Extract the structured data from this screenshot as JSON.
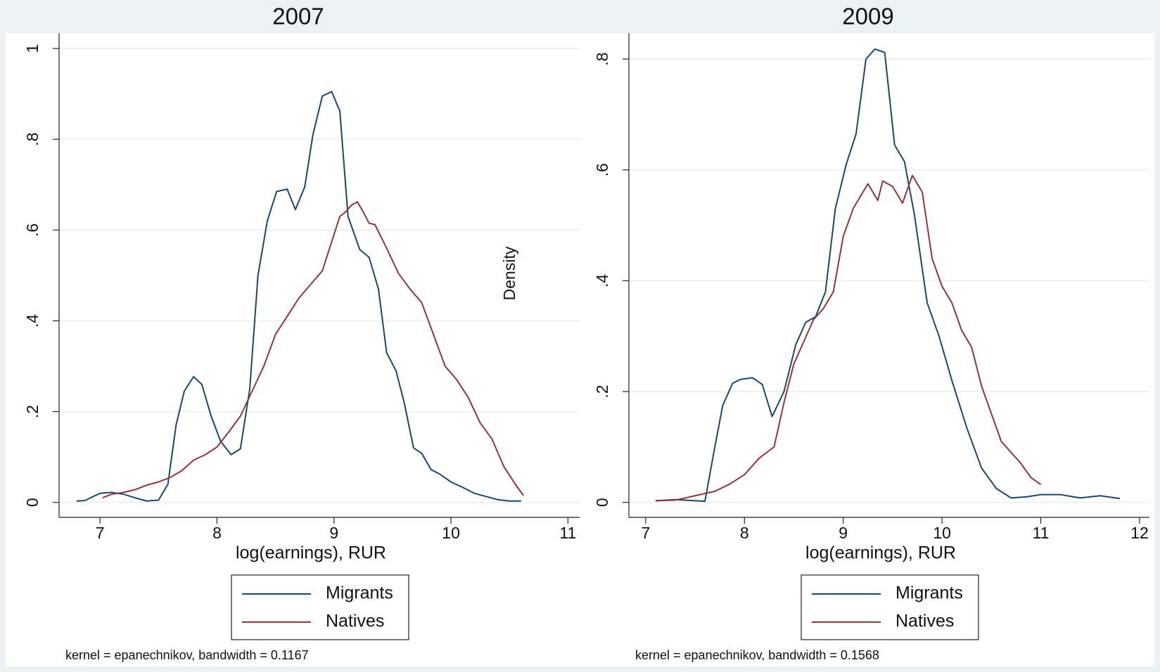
{
  "chart_data": [
    {
      "type": "line",
      "title": "2007",
      "xlabel": "log(earnings), RUR",
      "ylabel": "Density",
      "note": "kernel = epanechnikov, bandwidth = 0.1167",
      "xlim": [
        6.65,
        11.1
      ],
      "ylim": [
        -0.033,
        1.034
      ],
      "xticks": [
        7,
        8,
        9,
        10,
        11
      ],
      "yticks": [
        0,
        {
          "value": 0.2,
          "label": ".2"
        },
        {
          "value": 0.4,
          "label": ".4"
        },
        {
          "value": 0.6,
          "label": ".6"
        },
        {
          "value": 0.8,
          "label": ".8"
        },
        1
      ],
      "grid": true,
      "series": [
        {
          "name": "Migrants",
          "color": "#1a476f",
          "x": [
            6.8,
            6.87,
            7.0,
            7.1,
            7.2,
            7.3,
            7.4,
            7.5,
            7.58,
            7.65,
            7.72,
            7.8,
            7.87,
            7.95,
            8.03,
            8.12,
            8.2,
            8.28,
            8.35,
            8.43,
            8.51,
            8.6,
            8.67,
            8.75,
            8.82,
            8.9,
            8.98,
            9.05,
            9.12,
            9.22,
            9.3,
            9.38,
            9.45,
            9.53,
            9.6,
            9.68,
            9.75,
            9.83,
            9.9,
            10.0,
            10.1,
            10.2,
            10.3,
            10.4,
            10.5,
            10.6
          ],
          "values": [
            0.003,
            0.004,
            0.02,
            0.022,
            0.018,
            0.01,
            0.003,
            0.005,
            0.04,
            0.17,
            0.245,
            0.277,
            0.26,
            0.19,
            0.135,
            0.105,
            0.118,
            0.25,
            0.5,
            0.62,
            0.685,
            0.69,
            0.645,
            0.695,
            0.81,
            0.895,
            0.905,
            0.862,
            0.63,
            0.557,
            0.54,
            0.47,
            0.33,
            0.29,
            0.22,
            0.12,
            0.108,
            0.072,
            0.063,
            0.045,
            0.033,
            0.02,
            0.013,
            0.006,
            0.003,
            0.003
          ]
        },
        {
          "name": "Natives",
          "color": "#90353b",
          "x": [
            7.02,
            7.1,
            7.2,
            7.3,
            7.4,
            7.5,
            7.6,
            7.7,
            7.8,
            7.9,
            8.0,
            8.1,
            8.2,
            8.3,
            8.4,
            8.5,
            8.6,
            8.7,
            8.8,
            8.9,
            9.0,
            9.05,
            9.1,
            9.15,
            9.2,
            9.25,
            9.3,
            9.35,
            9.45,
            9.55,
            9.65,
            9.75,
            9.85,
            9.95,
            10.05,
            10.15,
            10.25,
            10.35,
            10.45,
            10.55,
            10.62
          ],
          "values": [
            0.01,
            0.018,
            0.022,
            0.028,
            0.038,
            0.045,
            0.055,
            0.07,
            0.093,
            0.105,
            0.122,
            0.155,
            0.19,
            0.245,
            0.3,
            0.37,
            0.41,
            0.45,
            0.48,
            0.51,
            0.59,
            0.63,
            0.64,
            0.655,
            0.662,
            0.64,
            0.615,
            0.612,
            0.56,
            0.505,
            0.47,
            0.44,
            0.37,
            0.3,
            0.27,
            0.23,
            0.175,
            0.14,
            0.08,
            0.04,
            0.015
          ]
        }
      ]
    },
    {
      "type": "line",
      "title": "2009",
      "xlabel": "log(earnings), RUR",
      "note": "kernel = epanechnikov, bandwidth = 0.1568",
      "xlim": [
        6.83,
        12.1
      ],
      "ylim": [
        -0.027,
        0.847
      ],
      "xticks": [
        7,
        8,
        9,
        10,
        11,
        12
      ],
      "yticks": [
        0,
        {
          "value": 0.2,
          "label": ".2"
        },
        {
          "value": 0.4,
          "label": ".4"
        },
        {
          "value": 0.6,
          "label": ".6"
        },
        {
          "value": 0.8,
          "label": ".8"
        }
      ],
      "grid": true,
      "series": [
        {
          "name": "Migrants",
          "color": "#1a476f",
          "x": [
            7.1,
            7.3,
            7.6,
            7.7,
            7.78,
            7.88,
            7.96,
            8.08,
            8.18,
            8.28,
            8.4,
            8.52,
            8.62,
            8.72,
            8.82,
            8.92,
            9.03,
            9.13,
            9.23,
            9.32,
            9.42,
            9.52,
            9.62,
            9.72,
            9.85,
            9.97,
            10.1,
            10.25,
            10.4,
            10.55,
            10.7,
            10.85,
            11.0,
            11.2,
            11.4,
            11.6,
            11.8
          ],
          "values": [
            0.003,
            0.005,
            0.002,
            0.1,
            0.175,
            0.215,
            0.222,
            0.225,
            0.213,
            0.155,
            0.2,
            0.285,
            0.325,
            0.335,
            0.38,
            0.53,
            0.61,
            0.665,
            0.8,
            0.818,
            0.812,
            0.645,
            0.615,
            0.52,
            0.36,
            0.3,
            0.22,
            0.135,
            0.062,
            0.025,
            0.008,
            0.01,
            0.014,
            0.014,
            0.008,
            0.012,
            0.007
          ]
        },
        {
          "name": "Natives",
          "color": "#90353b",
          "x": [
            7.1,
            7.3,
            7.5,
            7.7,
            7.85,
            8.0,
            8.15,
            8.3,
            8.4,
            8.5,
            8.6,
            8.7,
            8.8,
            8.9,
            9.0,
            9.1,
            9.2,
            9.25,
            9.35,
            9.4,
            9.5,
            9.6,
            9.7,
            9.8,
            9.9,
            10.0,
            10.1,
            10.2,
            10.3,
            10.4,
            10.5,
            10.6,
            10.7,
            10.8,
            10.9,
            11.0
          ],
          "values": [
            0.003,
            0.004,
            0.012,
            0.02,
            0.033,
            0.05,
            0.08,
            0.1,
            0.18,
            0.25,
            0.29,
            0.33,
            0.35,
            0.38,
            0.48,
            0.53,
            0.56,
            0.575,
            0.545,
            0.58,
            0.57,
            0.54,
            0.59,
            0.56,
            0.44,
            0.39,
            0.36,
            0.31,
            0.28,
            0.21,
            0.16,
            0.11,
            0.09,
            0.07,
            0.045,
            0.032
          ]
        }
      ]
    }
  ]
}
